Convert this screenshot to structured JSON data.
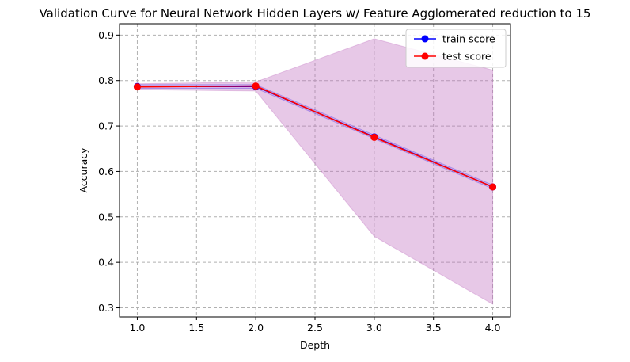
{
  "chart_data": {
    "type": "line",
    "title": "Validation Curve for Neural Network Hidden Layers w/ Feature Agglomerated reduction to 15",
    "xlabel": "Depth",
    "ylabel": "Accuracy",
    "xlim": [
      0.85,
      4.15
    ],
    "ylim": [
      0.28,
      0.925
    ],
    "x": [
      1.0,
      2.0,
      3.0,
      4.0
    ],
    "x_ticks": [
      1.0,
      1.5,
      2.0,
      2.5,
      3.0,
      3.5,
      4.0
    ],
    "x_tick_labels": [
      "1.0",
      "1.5",
      "2.0",
      "2.5",
      "3.0",
      "3.5",
      "4.0"
    ],
    "y_ticks": [
      0.3,
      0.4,
      0.5,
      0.6,
      0.7,
      0.8,
      0.9
    ],
    "y_tick_labels": [
      "0.3",
      "0.4",
      "0.5",
      "0.6",
      "0.7",
      "0.8",
      "0.9"
    ],
    "grid": true,
    "legend_position": "top-right",
    "series": [
      {
        "name": "train score",
        "color": "#0000ff",
        "values": [
          0.787,
          0.787,
          0.676,
          0.566
        ],
        "band_lower": [
          0.783,
          0.783,
          0.672,
          0.562
        ],
        "band_upper": [
          0.791,
          0.791,
          0.68,
          0.57
        ]
      },
      {
        "name": "test score",
        "color": "#ff0000",
        "values": [
          0.786,
          0.788,
          0.675,
          0.566
        ],
        "band_lower": [
          0.78,
          0.777,
          0.457,
          0.308
        ],
        "band_upper": [
          0.793,
          0.797,
          0.892,
          0.823
        ]
      }
    ],
    "band_colors": [
      "#0000ff",
      "#bf6fbf"
    ]
  }
}
